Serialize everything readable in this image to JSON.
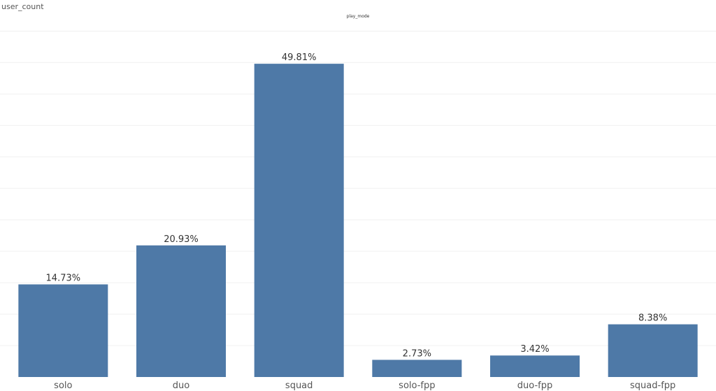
{
  "chart_data": {
    "type": "bar",
    "title": "play_mode",
    "ylabel": "user_count",
    "xlabel": "",
    "categories": [
      "solo",
      "duo",
      "squad",
      "solo-fpp",
      "duo-fpp",
      "squad-fpp"
    ],
    "values": [
      14.73,
      20.93,
      49.81,
      2.73,
      3.42,
      8.38
    ],
    "value_labels": [
      "14.73%",
      "20.93%",
      "49.81%",
      "2.73%",
      "3.42%",
      "8.38%"
    ],
    "ylim": [
      0,
      57.5
    ],
    "grid": true,
    "colors": {
      "bar": "#4e79a7",
      "grid": "#f0f0f0",
      "text": "#333333",
      "tick": "#555555"
    }
  }
}
